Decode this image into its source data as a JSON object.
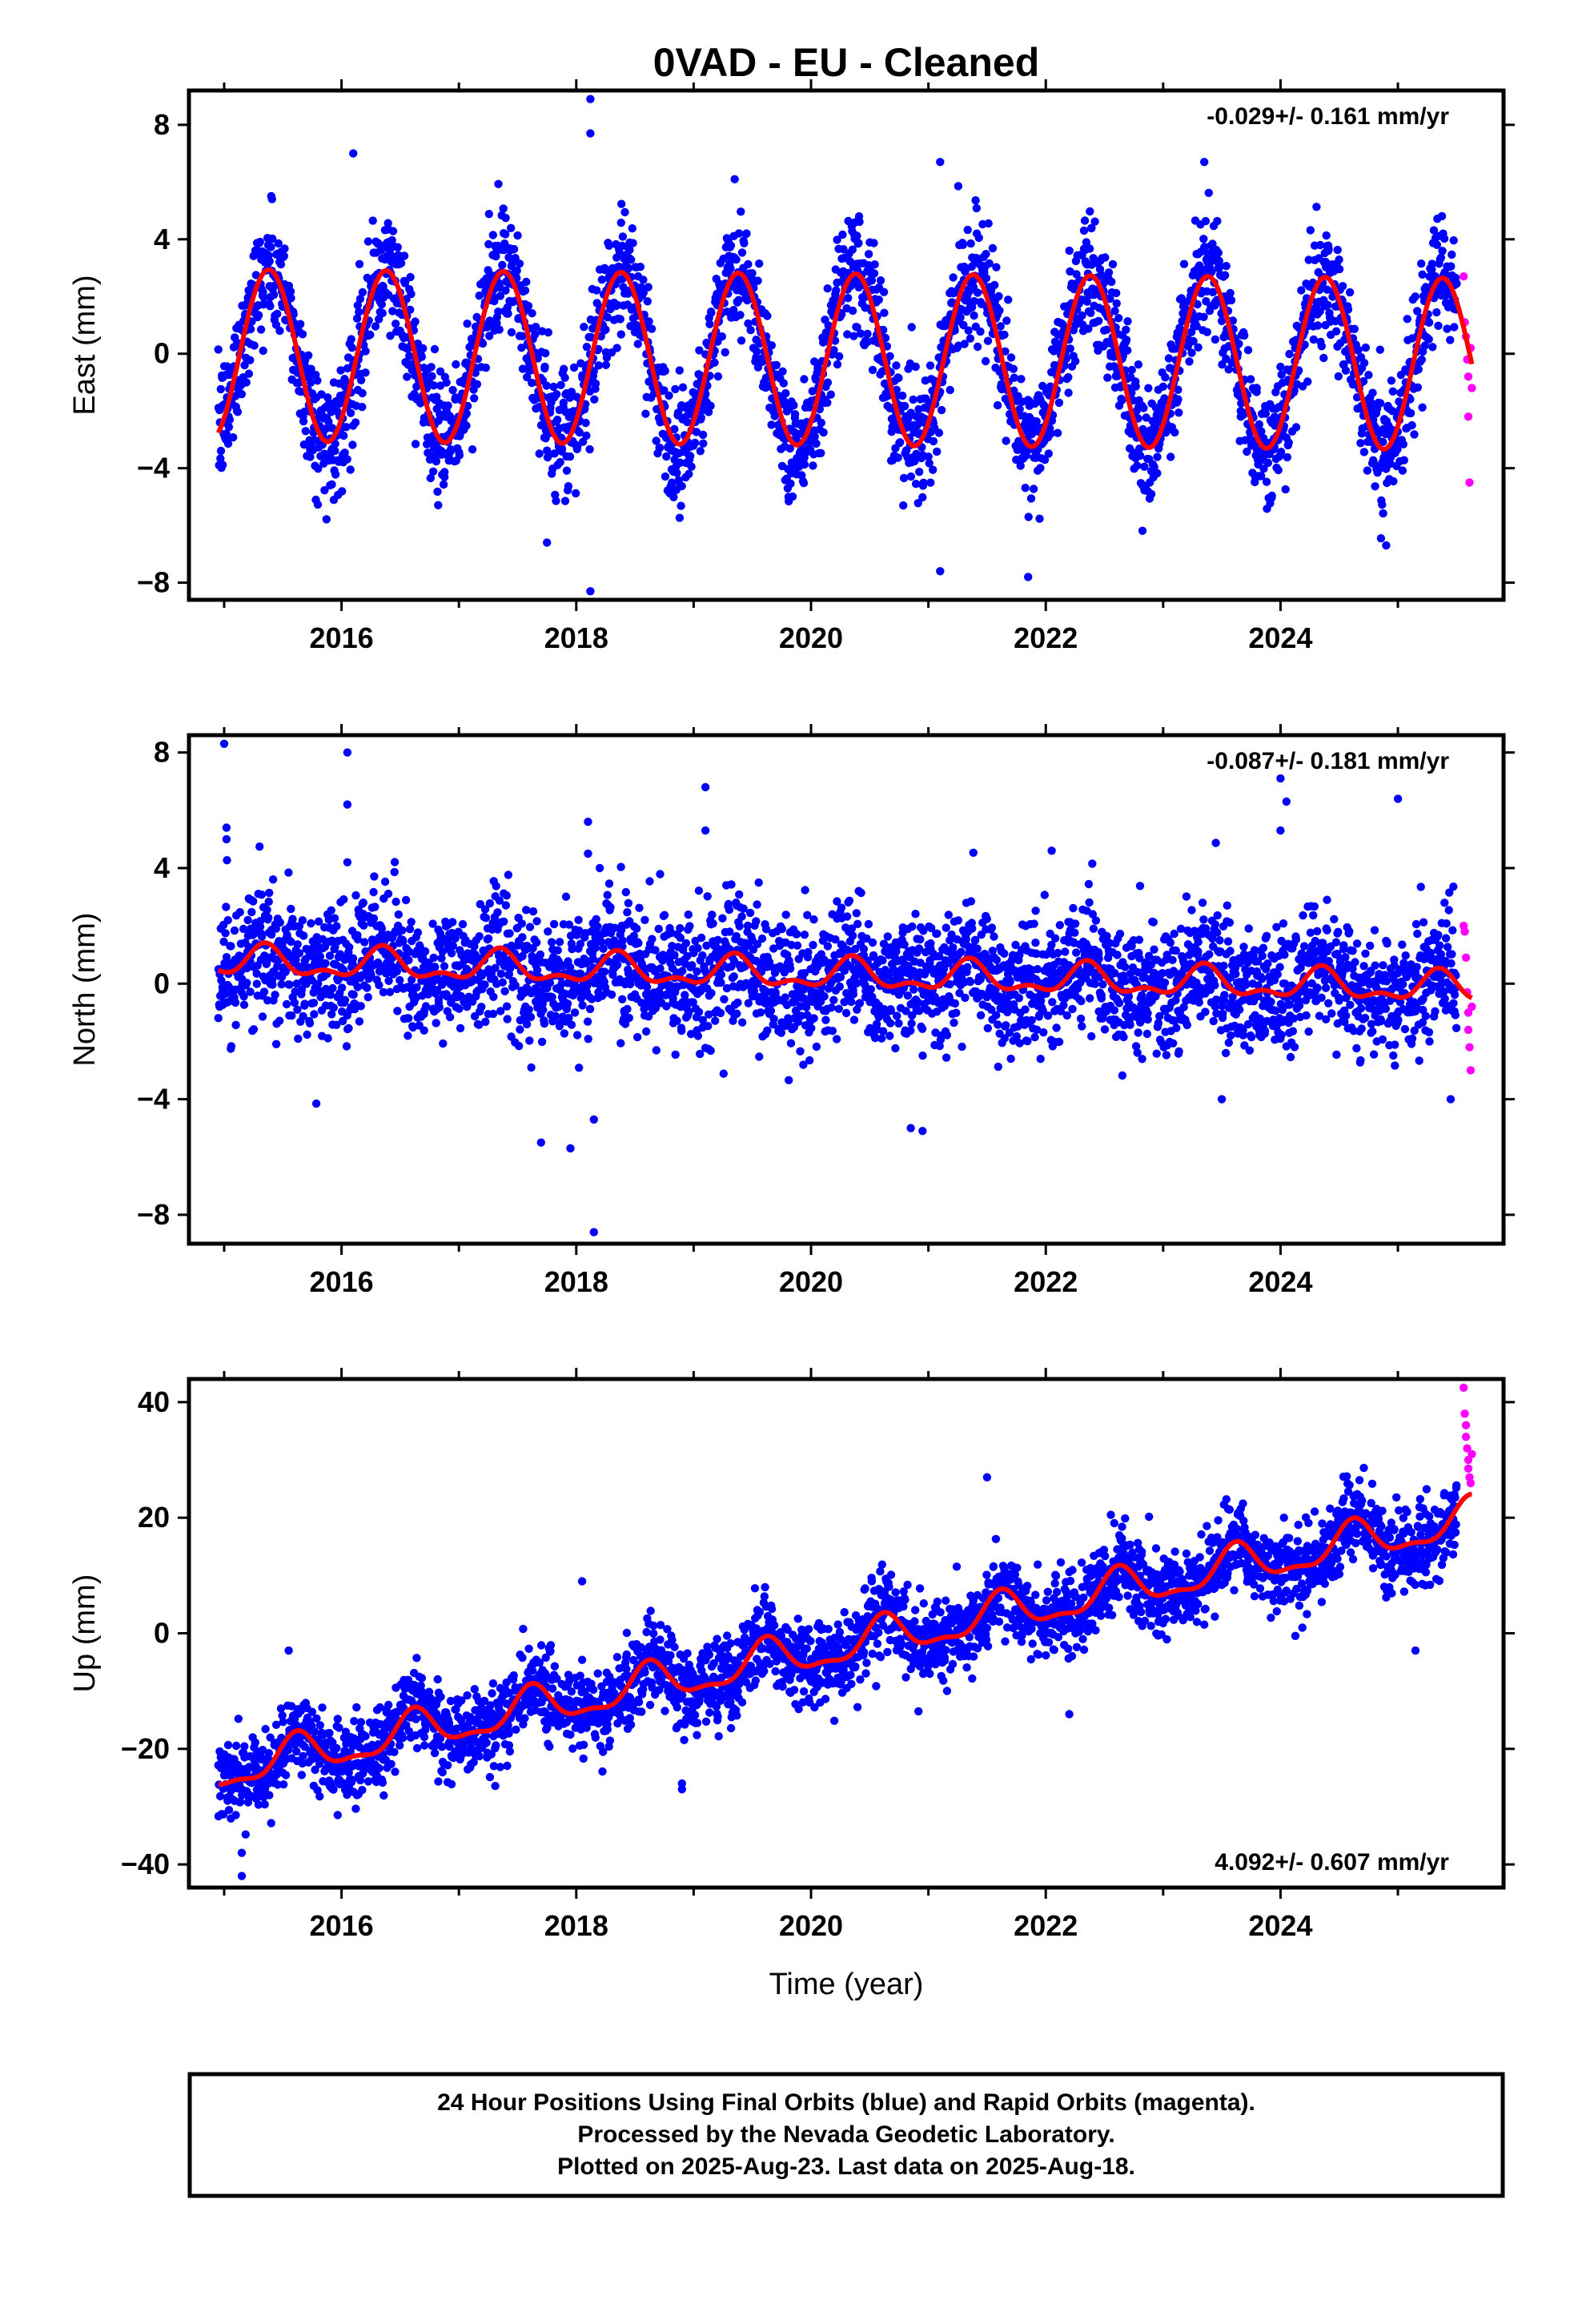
{
  "title": "0VAD  - EU - Cleaned",
  "xlabel": "Time (year)",
  "footer": {
    "line1": "24 Hour Positions Using Final Orbits (blue) and Rapid Orbits (magenta).",
    "line2": "Processed by the Nevada Geodetic Laboratory.",
    "line3": "Plotted on 2025-Aug-23. Last data on 2025-Aug-18."
  },
  "colors": {
    "final": "#0000ff",
    "rapid": "#ff00ff",
    "model": "#ff0000",
    "frame": "#000000"
  },
  "chart_data": [
    {
      "type": "scatter",
      "component": "east",
      "ylabel": "East (mm)",
      "rate_label": "-0.029+/- 0.161 mm/yr",
      "rate_position": "top-right",
      "xlim": [
        2014.7,
        2025.9
      ],
      "ylim": [
        -8.6,
        9.2
      ],
      "x_ticks": [
        2016,
        2018,
        2020,
        2022,
        2024
      ],
      "y_ticks": [
        -8,
        -4,
        0,
        4,
        8
      ],
      "data_start": 2014.95,
      "final_end": 2025.5,
      "rapid_end": 2025.63,
      "model": {
        "offset": -0.05,
        "trend_mm_per_yr": -0.029,
        "annual_amp": 3.0,
        "annual_peak": 2015.38,
        "semiannual_amp": 0.0
      },
      "noise_sd": 1.05,
      "outliers": [
        [
          2018.12,
          8.9
        ],
        [
          2018.12,
          7.7
        ],
        [
          2018.12,
          -8.3
        ],
        [
          2017.75,
          -6.6
        ],
        [
          2021.1,
          -7.6
        ],
        [
          2021.85,
          -7.8
        ],
        [
          2016.1,
          7.0
        ],
        [
          2021.1,
          6.7
        ],
        [
          2023.35,
          6.7
        ],
        [
          2024.9,
          -6.7
        ],
        [
          2019.35,
          6.1
        ]
      ],
      "rapid_points": [
        [
          2025.56,
          2.7
        ],
        [
          2025.57,
          1.1
        ],
        [
          2025.58,
          0.6
        ],
        [
          2025.59,
          -0.2
        ],
        [
          2025.6,
          -0.8
        ],
        [
          2025.6,
          -2.2
        ],
        [
          2025.61,
          -4.5
        ],
        [
          2025.62,
          0.2
        ],
        [
          2025.63,
          -1.2
        ]
      ]
    },
    {
      "type": "scatter",
      "component": "north",
      "ylabel": "North (mm)",
      "rate_label": "-0.087+/- 0.181 mm/yr",
      "rate_position": "top-right",
      "xlim": [
        2014.7,
        2025.9
      ],
      "ylim": [
        -9.0,
        8.6
      ],
      "x_ticks": [
        2016,
        2018,
        2020,
        2022,
        2024
      ],
      "y_ticks": [
        -8,
        -4,
        0,
        4,
        8
      ],
      "data_start": 2014.95,
      "final_end": 2025.5,
      "rapid_end": 2025.63,
      "model": {
        "offset": 0.75,
        "trend_mm_per_yr": -0.087,
        "annual_amp": 0.45,
        "annual_peak": 2015.35,
        "semiannual_amp": 0.25
      },
      "noise_sd": 1.1,
      "outliers": [
        [
          2015.0,
          8.3
        ],
        [
          2015.02,
          5.4
        ],
        [
          2015.02,
          5.0
        ],
        [
          2016.05,
          8.0
        ],
        [
          2016.05,
          6.2
        ],
        [
          2016.05,
          4.2
        ],
        [
          2018.15,
          -8.6
        ],
        [
          2018.1,
          5.6
        ],
        [
          2018.1,
          4.5
        ],
        [
          2019.1,
          6.8
        ],
        [
          2019.1,
          5.3
        ],
        [
          2024.0,
          7.1
        ],
        [
          2024.05,
          6.3
        ],
        [
          2024.0,
          5.3
        ],
        [
          2025.0,
          6.4
        ],
        [
          2017.7,
          -5.5
        ],
        [
          2017.95,
          -5.7
        ],
        [
          2018.15,
          -4.7
        ],
        [
          2020.85,
          -5.0
        ],
        [
          2020.95,
          -5.1
        ],
        [
          2023.5,
          -4.0
        ],
        [
          2025.45,
          -4.0
        ],
        [
          2018.2,
          4.0
        ],
        [
          2022.05,
          4.6
        ]
      ],
      "rapid_points": [
        [
          2025.56,
          2.0
        ],
        [
          2025.57,
          1.8
        ],
        [
          2025.58,
          0.9
        ],
        [
          2025.59,
          -0.3
        ],
        [
          2025.6,
          -1.0
        ],
        [
          2025.6,
          -1.6
        ],
        [
          2025.61,
          -2.2
        ],
        [
          2025.62,
          -3.0
        ],
        [
          2025.63,
          -0.8
        ]
      ]
    },
    {
      "type": "scatter",
      "component": "up",
      "ylabel": "Up (mm)",
      "rate_label": "4.092+/- 0.607 mm/yr",
      "rate_position": "bottom-right",
      "xlim": [
        2014.7,
        2025.9
      ],
      "ylim": [
        -44,
        44
      ],
      "x_ticks": [
        2016,
        2018,
        2020,
        2022,
        2024
      ],
      "y_ticks": [
        -40,
        -20,
        0,
        20,
        40
      ],
      "data_start": 2014.95,
      "final_end": 2025.5,
      "rapid_end": 2025.63,
      "model": {
        "offset": -24.0,
        "trend_mm_per_yr": 4.092,
        "annual_amp": 3.2,
        "annual_peak": 2015.62,
        "semiannual_amp": 1.2
      },
      "noise_sd": 3.5,
      "outliers": [
        [
          2015.15,
          -42
        ],
        [
          2015.15,
          -38
        ],
        [
          2018.9,
          -26
        ],
        [
          2018.9,
          -27
        ],
        [
          2022.2,
          -14
        ],
        [
          2025.15,
          -3
        ],
        [
          2021.5,
          27
        ],
        [
          2018.05,
          9
        ],
        [
          2015.55,
          -3
        ]
      ],
      "rapid_points": [
        [
          2025.56,
          42.5
        ],
        [
          2025.57,
          38.0
        ],
        [
          2025.58,
          36.0
        ],
        [
          2025.58,
          34.0
        ],
        [
          2025.59,
          32.0
        ],
        [
          2025.6,
          30.0
        ],
        [
          2025.6,
          28.5
        ],
        [
          2025.61,
          27.0
        ],
        [
          2025.62,
          26.0
        ],
        [
          2025.63,
          31.0
        ]
      ]
    }
  ]
}
